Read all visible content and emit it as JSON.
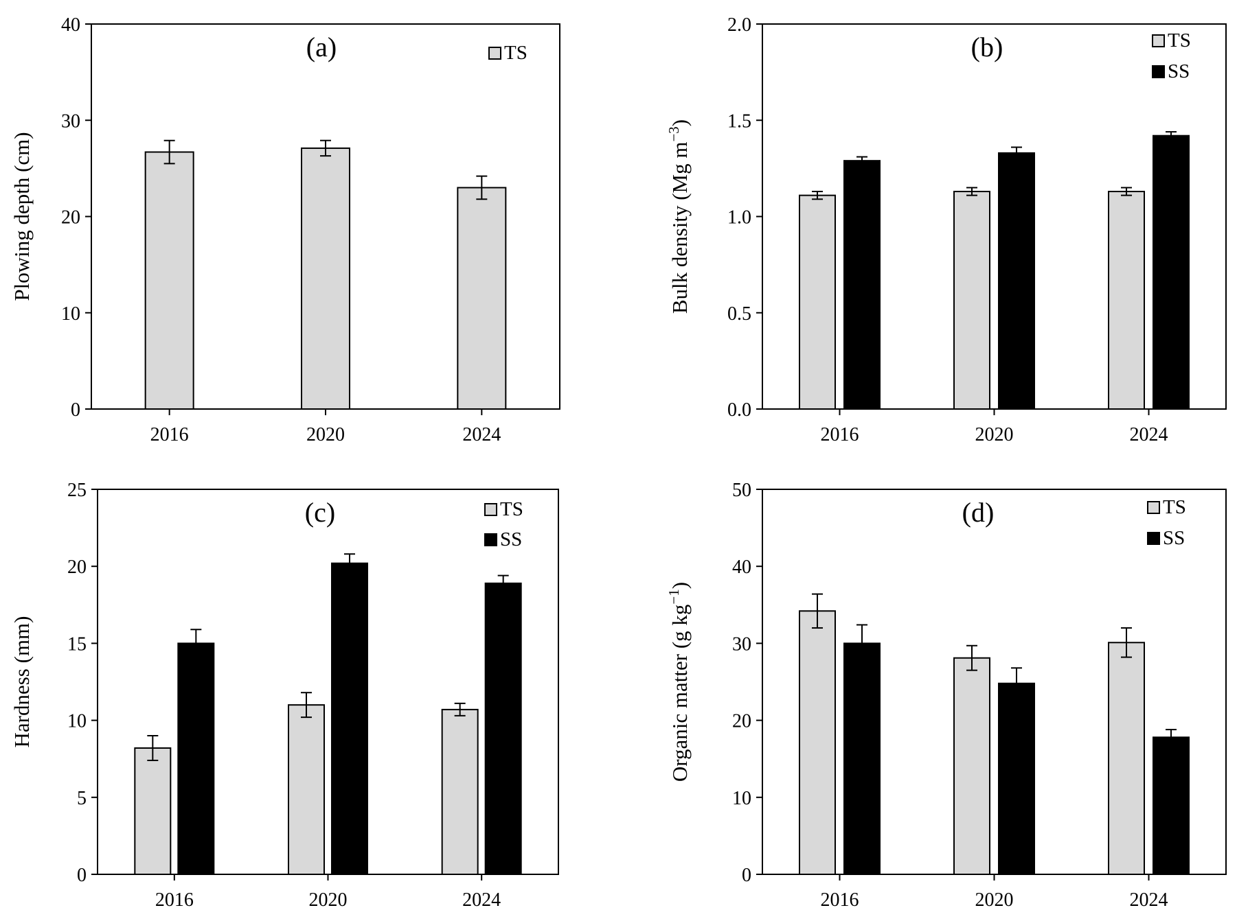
{
  "chart_data": [
    {
      "panel": "(a)",
      "type": "bar",
      "ylabel": "Plowing depth (cm)",
      "ylabel_superscript": "",
      "categories": [
        "2016",
        "2020",
        "2024"
      ],
      "ylim": [
        0,
        40
      ],
      "yticks": [
        0,
        10,
        20,
        30,
        40
      ],
      "ytick_labels": [
        "0",
        "10",
        "20",
        "30",
        "40"
      ],
      "series": [
        {
          "name": "TS",
          "color": "#d9d9d9",
          "values": [
            26.7,
            27.1,
            23.0
          ],
          "errors": [
            1.2,
            0.8,
            1.2
          ]
        }
      ]
    },
    {
      "panel": "(b)",
      "type": "bar",
      "ylabel": "Bulk  density  (Mg m",
      "ylabel_superscript": "−3",
      "ylabel_suffix": ")",
      "categories": [
        "2016",
        "2020",
        "2024"
      ],
      "ylim": [
        0,
        2.0
      ],
      "yticks": [
        0,
        0.5,
        1.0,
        1.5,
        2.0
      ],
      "ytick_labels": [
        "0.0",
        "0.5",
        "1.0",
        "1.5",
        "2.0"
      ],
      "series": [
        {
          "name": "TS",
          "color": "#d9d9d9",
          "values": [
            1.11,
            1.13,
            1.13
          ],
          "errors": [
            0.02,
            0.02,
            0.02
          ]
        },
        {
          "name": "SS",
          "color": "#000000",
          "values": [
            1.29,
            1.33,
            1.42
          ],
          "errors": [
            0.02,
            0.03,
            0.02
          ]
        }
      ]
    },
    {
      "panel": "(c)",
      "type": "bar",
      "ylabel": "Hardness (mm)",
      "ylabel_superscript": "",
      "categories": [
        "2016",
        "2020",
        "2024"
      ],
      "ylim": [
        0,
        25
      ],
      "yticks": [
        0,
        5,
        10,
        15,
        20,
        25
      ],
      "ytick_labels": [
        "0",
        "5",
        "10",
        "15",
        "20",
        "25"
      ],
      "series": [
        {
          "name": "TS",
          "color": "#d9d9d9",
          "values": [
            8.2,
            11.0,
            10.7
          ],
          "errors": [
            0.8,
            0.8,
            0.4
          ]
        },
        {
          "name": "SS",
          "color": "#000000",
          "values": [
            15.0,
            20.2,
            18.9
          ],
          "errors": [
            0.9,
            0.6,
            0.5
          ]
        }
      ]
    },
    {
      "panel": "(d)",
      "type": "bar",
      "ylabel": "Organic matter (g kg",
      "ylabel_superscript": "−1",
      "ylabel_suffix": ")",
      "categories": [
        "2016",
        "2020",
        "2024"
      ],
      "ylim": [
        0,
        50
      ],
      "yticks": [
        0,
        10,
        20,
        30,
        40,
        50
      ],
      "ytick_labels": [
        "0",
        "10",
        "20",
        "30",
        "40",
        "50"
      ],
      "series": [
        {
          "name": "TS",
          "color": "#d9d9d9",
          "values": [
            34.2,
            28.1,
            30.1
          ],
          "errors": [
            2.2,
            1.6,
            1.9
          ]
        },
        {
          "name": "SS",
          "color": "#000000",
          "values": [
            30.0,
            24.8,
            17.8
          ],
          "errors": [
            2.4,
            2.0,
            1.0
          ]
        }
      ]
    }
  ]
}
